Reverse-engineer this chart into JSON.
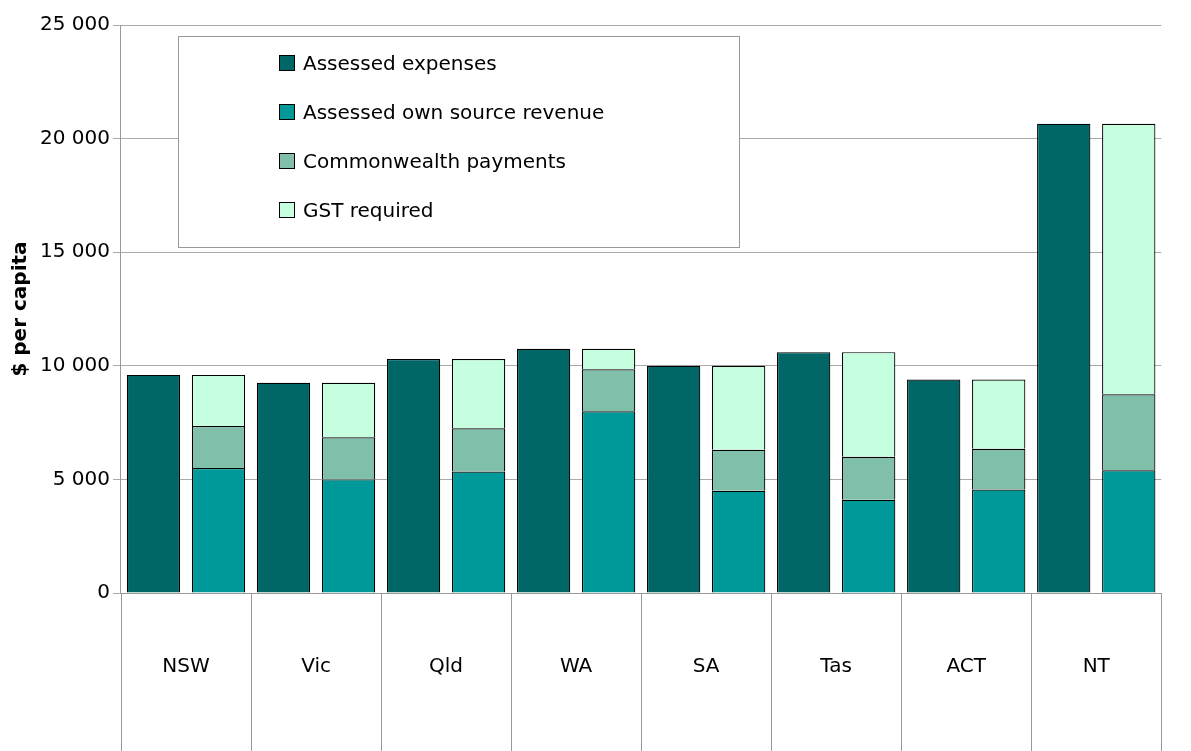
{
  "chart_data": {
    "type": "bar",
    "ylabel": "$ per capita",
    "categories": [
      "NSW",
      null,
      "Vic",
      null,
      "Qld",
      null,
      "WA",
      null,
      "SA",
      null,
      "Tas",
      null,
      "ACT",
      null,
      "NT",
      null
    ],
    "stacked": true,
    "ylim": [
      0,
      25000
    ],
    "yticks": [
      0,
      {
        "value": 5000,
        "label": "5 000"
      },
      {
        "value": 10000,
        "label": "10 000"
      },
      {
        "value": 15000,
        "label": "15 000"
      },
      {
        "value": 20000,
        "label": "20 000"
      },
      {
        "value": 25000,
        "label": "25 000"
      }
    ],
    "grid": "y",
    "legend": "top left",
    "series": [
      {
        "name": "Assessed expenses",
        "color": "#006666",
        "values": [
          9600,
          null,
          9250,
          null,
          10300,
          null,
          10750,
          null,
          10000,
          null,
          10600,
          null,
          9400,
          null,
          20650,
          null
        ]
      },
      {
        "name": "Assessed own source revenue",
        "color": "#009999",
        "values": [
          null,
          5500,
          null,
          5000,
          null,
          5350,
          null,
          8000,
          null,
          4500,
          null,
          4100,
          null,
          4550,
          null,
          5400
        ]
      },
      {
        "name": "Commonwealth payments",
        "color": "#80bfaa",
        "values": [
          null,
          1850,
          null,
          1850,
          null,
          1900,
          null,
          1850,
          null,
          1800,
          null,
          1900,
          null,
          1800,
          null,
          3350
        ]
      },
      {
        "name": "GST required",
        "color": "#c6ffe0",
        "values": [
          null,
          2250,
          null,
          2400,
          null,
          3050,
          null,
          900,
          null,
          3700,
          null,
          4600,
          null,
          3050,
          null,
          11900
        ]
      }
    ]
  }
}
